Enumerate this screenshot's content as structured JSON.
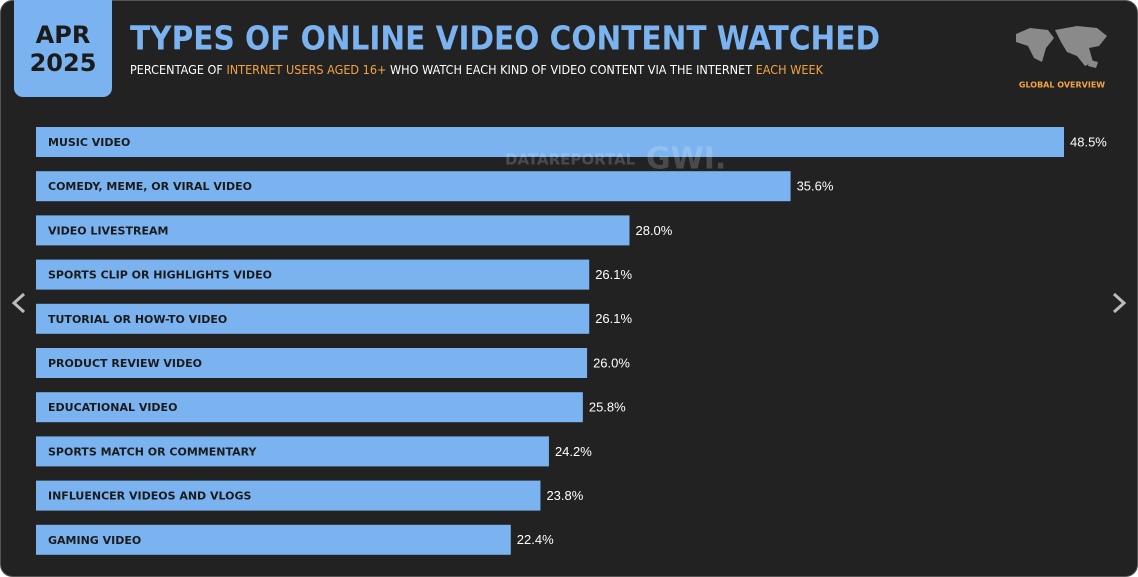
{
  "chart_data": {
    "type": "bar",
    "orientation": "horizontal",
    "badge": [
      "APR",
      "2025"
    ],
    "title": "TYPES OF ONLINE VIDEO CONTENT WATCHED",
    "subtitle": [
      "PERCENTAGE OF ",
      "INTERNET USERS AGED 16+",
      " WHO WATCH EACH KIND OF VIDEO CONTENT VIA THE INTERNET ",
      "EACH WEEK"
    ],
    "corner_label": "GLOBAL OVERVIEW",
    "watermark": [
      "DATAREPORTAL",
      "GWI."
    ],
    "categories": [
      "MUSIC VIDEO",
      "COMEDY, MEME, OR VIRAL VIDEO",
      "VIDEO LIVESTREAM",
      "SPORTS CLIP OR HIGHLIGHTS VIDEO",
      "TUTORIAL OR HOW-TO VIDEO",
      "PRODUCT REVIEW VIDEO",
      "EDUCATIONAL VIDEO",
      "SPORTS MATCH OR COMMENTARY",
      "INFLUENCER VIDEOS AND VLOGS",
      "GAMING VIDEO"
    ],
    "values": [
      48.5,
      35.6,
      28.0,
      26.1,
      26.1,
      26.0,
      25.8,
      24.2,
      23.8,
      22.4
    ],
    "value_labels": [
      "48.5%",
      "35.6%",
      "28.0%",
      "26.1%",
      "26.1%",
      "26.0%",
      "25.8%",
      "24.2%",
      "23.8%",
      "22.4%"
    ],
    "color": "#7ab3ef"
  }
}
